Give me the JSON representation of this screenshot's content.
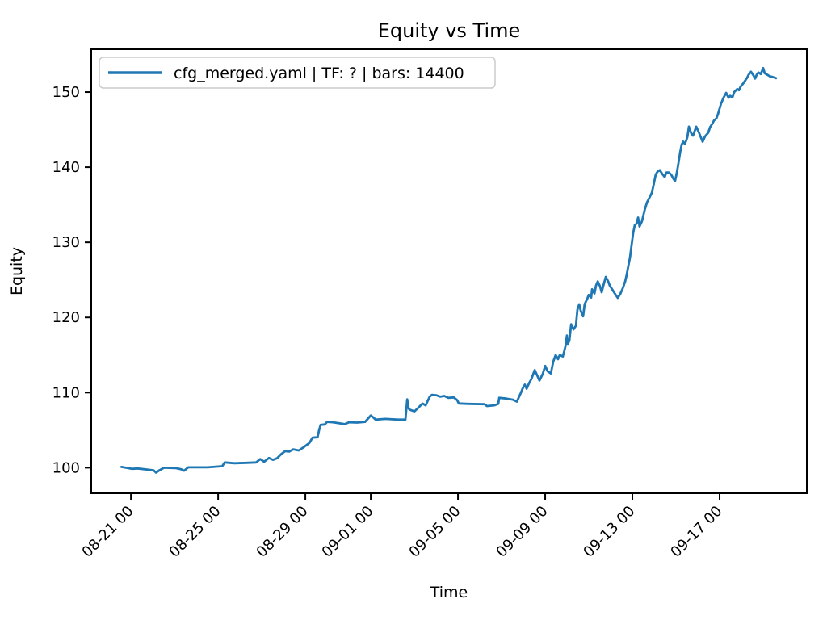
{
  "chart": {
    "title": "Equity vs Time",
    "xlabel": "Time",
    "ylabel": "Equity",
    "legend": {
      "position": "upper-left",
      "items": [
        {
          "label": "cfg_merged.yaml | TF: ? | bars: 14400",
          "color": "#1f77b4"
        }
      ]
    },
    "colors": {
      "line": "#1f77b4",
      "axis": "#000000",
      "legend_border": "#cccccc",
      "background": "#ffffff"
    }
  },
  "chart_data": {
    "type": "line",
    "title": "Equity vs Time",
    "xlabel": "Time",
    "ylabel": "Equity",
    "grid": false,
    "legend_position": "upper left",
    "legend_entries": [
      "cfg_merged.yaml | TF: ? | bars: 14400"
    ],
    "x_axis": {
      "unit": "days since 08-21 00:00",
      "lim": [
        -1.82,
        31.0
      ],
      "ticks": [
        {
          "day": 0,
          "label": "08-21 00"
        },
        {
          "day": 4,
          "label": "08-25 00"
        },
        {
          "day": 8,
          "label": "08-29 00"
        },
        {
          "day": 11,
          "label": "09-01 00"
        },
        {
          "day": 15,
          "label": "09-05 00"
        },
        {
          "day": 19,
          "label": "09-09 00"
        },
        {
          "day": 23,
          "label": "09-13 00"
        },
        {
          "day": 27,
          "label": "09-17 00"
        }
      ],
      "tick_rotation_deg": 45
    },
    "y_axis": {
      "lim": [
        96.6,
        155.7
      ],
      "ticks": [
        100,
        110,
        120,
        130,
        140,
        150
      ]
    },
    "series": [
      {
        "name": "cfg_merged.yaml | TF: ? | bars: 14400",
        "color": "#1f77b4",
        "points": [
          [
            -0.44,
            100.1
          ],
          [
            -0.15,
            99.95
          ],
          [
            0.04,
            99.85
          ],
          [
            0.3,
            99.9
          ],
          [
            0.59,
            99.8
          ],
          [
            1.04,
            99.65
          ],
          [
            1.15,
            99.35
          ],
          [
            1.33,
            99.7
          ],
          [
            1.52,
            100.0
          ],
          [
            2.04,
            99.95
          ],
          [
            2.3,
            99.8
          ],
          [
            2.44,
            99.6
          ],
          [
            2.63,
            100.05
          ],
          [
            3.52,
            100.05
          ],
          [
            4.19,
            100.2
          ],
          [
            4.3,
            100.7
          ],
          [
            4.74,
            100.6
          ],
          [
            5.3,
            100.65
          ],
          [
            5.74,
            100.7
          ],
          [
            5.93,
            101.15
          ],
          [
            6.11,
            100.8
          ],
          [
            6.33,
            101.3
          ],
          [
            6.52,
            101.05
          ],
          [
            6.7,
            101.25
          ],
          [
            6.89,
            101.8
          ],
          [
            7.07,
            102.2
          ],
          [
            7.26,
            102.15
          ],
          [
            7.44,
            102.45
          ],
          [
            7.7,
            102.3
          ],
          [
            7.96,
            102.8
          ],
          [
            8.19,
            103.3
          ],
          [
            8.33,
            104.0
          ],
          [
            8.56,
            104.05
          ],
          [
            8.63,
            105.0
          ],
          [
            8.7,
            105.7
          ],
          [
            8.89,
            105.75
          ],
          [
            9.0,
            106.1
          ],
          [
            9.26,
            106.05
          ],
          [
            9.48,
            105.95
          ],
          [
            9.81,
            105.8
          ],
          [
            10.0,
            106.05
          ],
          [
            10.37,
            106.0
          ],
          [
            10.74,
            106.1
          ],
          [
            11.0,
            106.95
          ],
          [
            11.11,
            106.7
          ],
          [
            11.22,
            106.4
          ],
          [
            11.67,
            106.5
          ],
          [
            12.26,
            106.4
          ],
          [
            12.59,
            106.4
          ],
          [
            12.67,
            109.1
          ],
          [
            12.74,
            107.85
          ],
          [
            12.81,
            107.7
          ],
          [
            13.0,
            107.5
          ],
          [
            13.19,
            108.0
          ],
          [
            13.37,
            108.55
          ],
          [
            13.52,
            108.3
          ],
          [
            13.7,
            109.45
          ],
          [
            13.81,
            109.7
          ],
          [
            14.0,
            109.65
          ],
          [
            14.19,
            109.45
          ],
          [
            14.37,
            109.55
          ],
          [
            14.56,
            109.3
          ],
          [
            14.81,
            109.35
          ],
          [
            14.96,
            109.0
          ],
          [
            15.04,
            108.55
          ],
          [
            15.48,
            108.5
          ],
          [
            16.22,
            108.45
          ],
          [
            16.33,
            108.2
          ],
          [
            16.67,
            108.3
          ],
          [
            16.85,
            108.5
          ],
          [
            16.89,
            109.3
          ],
          [
            17.22,
            109.2
          ],
          [
            17.52,
            109.05
          ],
          [
            17.7,
            108.8
          ],
          [
            17.89,
            110.0
          ],
          [
            17.96,
            110.5
          ],
          [
            18.07,
            111.05
          ],
          [
            18.15,
            110.5
          ],
          [
            18.26,
            111.25
          ],
          [
            18.37,
            111.8
          ],
          [
            18.52,
            113.0
          ],
          [
            18.63,
            112.3
          ],
          [
            18.74,
            111.6
          ],
          [
            18.89,
            112.5
          ],
          [
            19.0,
            113.55
          ],
          [
            19.11,
            112.85
          ],
          [
            19.26,
            112.55
          ],
          [
            19.37,
            114.1
          ],
          [
            19.48,
            115.0
          ],
          [
            19.59,
            114.45
          ],
          [
            19.67,
            115.0
          ],
          [
            19.81,
            114.8
          ],
          [
            19.89,
            115.7
          ],
          [
            19.93,
            116.2
          ],
          [
            20.0,
            117.6
          ],
          [
            20.04,
            116.5
          ],
          [
            20.11,
            116.9
          ],
          [
            20.19,
            119.1
          ],
          [
            20.3,
            118.4
          ],
          [
            20.41,
            118.9
          ],
          [
            20.48,
            121.05
          ],
          [
            20.56,
            121.75
          ],
          [
            20.63,
            120.9
          ],
          [
            20.74,
            120.15
          ],
          [
            20.81,
            121.75
          ],
          [
            20.93,
            122.5
          ],
          [
            21.0,
            123.0
          ],
          [
            21.11,
            122.65
          ],
          [
            21.15,
            123.75
          ],
          [
            21.26,
            123.2
          ],
          [
            21.33,
            124.25
          ],
          [
            21.41,
            124.8
          ],
          [
            21.52,
            124.1
          ],
          [
            21.59,
            123.35
          ],
          [
            21.67,
            124.25
          ],
          [
            21.78,
            125.4
          ],
          [
            21.89,
            124.8
          ],
          [
            21.96,
            124.25
          ],
          [
            22.07,
            123.75
          ],
          [
            22.19,
            123.2
          ],
          [
            22.33,
            122.6
          ],
          [
            22.44,
            123.1
          ],
          [
            22.56,
            123.9
          ],
          [
            22.67,
            124.8
          ],
          [
            22.74,
            125.7
          ],
          [
            22.81,
            126.8
          ],
          [
            22.89,
            128.0
          ],
          [
            22.96,
            129.6
          ],
          [
            23.04,
            131.3
          ],
          [
            23.11,
            132.3
          ],
          [
            23.19,
            132.5
          ],
          [
            23.26,
            133.3
          ],
          [
            23.33,
            132.1
          ],
          [
            23.44,
            132.8
          ],
          [
            23.56,
            134.3
          ],
          [
            23.67,
            135.3
          ],
          [
            23.74,
            135.7
          ],
          [
            23.89,
            136.6
          ],
          [
            23.96,
            137.5
          ],
          [
            24.07,
            139.0
          ],
          [
            24.15,
            139.4
          ],
          [
            24.26,
            139.6
          ],
          [
            24.37,
            139.1
          ],
          [
            24.48,
            138.7
          ],
          [
            24.56,
            139.3
          ],
          [
            24.67,
            139.3
          ],
          [
            24.78,
            139.0
          ],
          [
            24.89,
            138.4
          ],
          [
            24.96,
            138.2
          ],
          [
            25.04,
            139.3
          ],
          [
            25.11,
            140.5
          ],
          [
            25.19,
            142.0
          ],
          [
            25.26,
            143.0
          ],
          [
            25.33,
            143.4
          ],
          [
            25.41,
            143.1
          ],
          [
            25.52,
            144.0
          ],
          [
            25.59,
            145.4
          ],
          [
            25.7,
            144.5
          ],
          [
            25.78,
            144.2
          ],
          [
            25.93,
            145.4
          ],
          [
            26.04,
            144.7
          ],
          [
            26.22,
            143.4
          ],
          [
            26.33,
            144.1
          ],
          [
            26.48,
            144.6
          ],
          [
            26.56,
            145.3
          ],
          [
            26.67,
            145.8
          ],
          [
            26.74,
            146.2
          ],
          [
            26.85,
            146.5
          ],
          [
            26.93,
            147.1
          ],
          [
            27.07,
            148.5
          ],
          [
            27.19,
            149.3
          ],
          [
            27.3,
            149.9
          ],
          [
            27.41,
            149.25
          ],
          [
            27.48,
            149.5
          ],
          [
            27.59,
            149.3
          ],
          [
            27.67,
            150.0
          ],
          [
            27.81,
            150.4
          ],
          [
            27.89,
            150.25
          ],
          [
            27.96,
            150.7
          ],
          [
            28.07,
            151.1
          ],
          [
            28.19,
            151.6
          ],
          [
            28.26,
            151.9
          ],
          [
            28.33,
            152.3
          ],
          [
            28.44,
            152.7
          ],
          [
            28.56,
            152.2
          ],
          [
            28.63,
            151.8
          ],
          [
            28.7,
            152.3
          ],
          [
            28.78,
            152.6
          ],
          [
            28.89,
            152.4
          ],
          [
            29.0,
            153.2
          ],
          [
            29.07,
            152.5
          ],
          [
            29.19,
            152.3
          ],
          [
            29.3,
            152.1
          ],
          [
            29.44,
            152.0
          ],
          [
            29.59,
            151.85
          ]
        ]
      }
    ]
  }
}
